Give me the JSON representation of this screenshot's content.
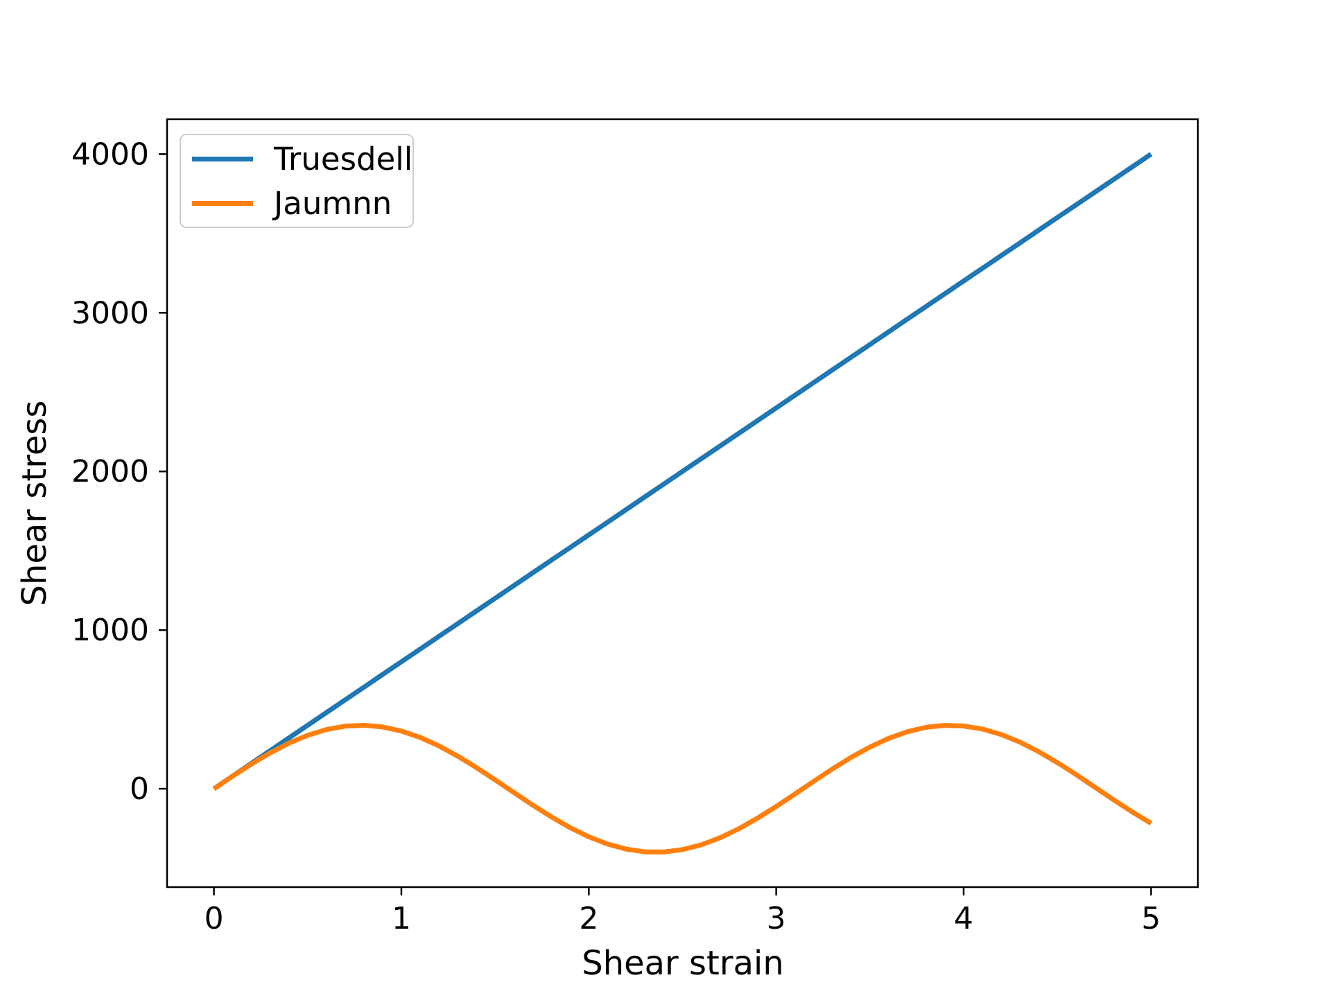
{
  "figure": {
    "background_color": "#ffffff",
    "axes_color": "#000000",
    "legend_border_color": "#cccccc"
  },
  "chart_data": {
    "type": "line",
    "title": "",
    "xlabel": "Shear strain",
    "ylabel": "Shear stress",
    "xlim": [
      -0.25,
      5.25
    ],
    "ylim": [
      -620,
      4220
    ],
    "x_ticks": [
      0,
      1,
      2,
      3,
      4,
      5
    ],
    "y_ticks": [
      0,
      1000,
      2000,
      3000,
      4000
    ],
    "grid": false,
    "legend_position": "upper left",
    "x": [
      0,
      0.1,
      0.2,
      0.3,
      0.4,
      0.5,
      0.6,
      0.7,
      0.8,
      0.9,
      1.0,
      1.1,
      1.2,
      1.3,
      1.4,
      1.5,
      1.6,
      1.7,
      1.8,
      1.9,
      2.0,
      2.1,
      2.2,
      2.3,
      2.4,
      2.5,
      2.6,
      2.7,
      2.8,
      2.9,
      3.0,
      3.1,
      3.2,
      3.3,
      3.4,
      3.5,
      3.6,
      3.7,
      3.8,
      3.9,
      4.0,
      4.1,
      4.2,
      4.3,
      4.4,
      4.5,
      4.6,
      4.7,
      4.8,
      4.9,
      5.0
    ],
    "series": [
      {
        "name": "Truesdell",
        "color": "#1f77b4",
        "values": [
          0,
          80,
          160,
          240,
          320,
          400,
          480,
          560,
          640,
          720,
          800,
          880,
          960,
          1040,
          1120,
          1200,
          1280,
          1360,
          1440,
          1520,
          1600,
          1680,
          1760,
          1840,
          1920,
          2000,
          2080,
          2160,
          2240,
          2320,
          2400,
          2480,
          2560,
          2640,
          2720,
          2800,
          2880,
          2960,
          3040,
          3120,
          3200,
          3280,
          3360,
          3440,
          3520,
          3600,
          3680,
          3760,
          3840,
          3920,
          4000
        ]
      },
      {
        "name": "Jaumnn",
        "color": "#ff7f0e",
        "values": [
          0,
          79.5,
          155.8,
          225.9,
          286.9,
          336.6,
          372.8,
          394.2,
          399.8,
          389.5,
          363.7,
          323.4,
          270.2,
          206.2,
          134.0,
          56.4,
          -23.3,
          -102.2,
          -177.0,
          -244.7,
          -302.7,
          -348.6,
          -380.6,
          -397.5,
          -398.5,
          -383.6,
          -353.4,
          -309.1,
          -252.5,
          -185.8,
          -111.8,
          -33.2,
          46.6,
          124.6,
          197.6,
          262.8,
          317.5,
          359.5,
          387.2,
          399.4,
          395.7,
          376.3,
          341.8,
          293.8,
          234.0,
          164.8,
          89.2,
          9.9,
          -69.7,
          -146.6,
          -217.6
        ]
      }
    ]
  }
}
